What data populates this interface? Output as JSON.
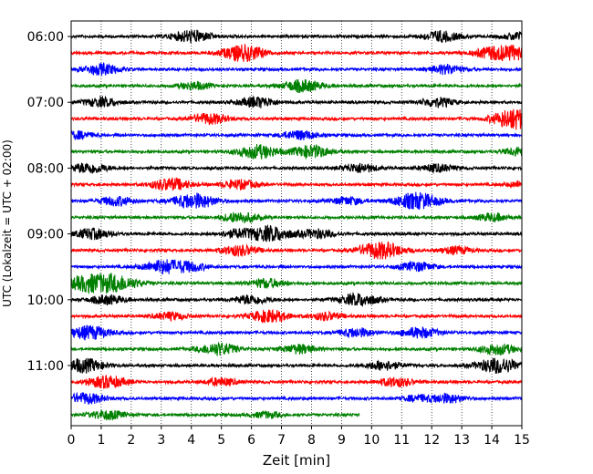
{
  "chart_data": {
    "type": "line",
    "title": "",
    "xlabel": "Zeit  [min]",
    "ylabel": "UTC (Lokalzeit = UTC + 02:00)",
    "xlim": [
      0,
      15
    ],
    "x_ticks": [
      0,
      1,
      2,
      3,
      4,
      5,
      6,
      7,
      8,
      9,
      10,
      11,
      12,
      13,
      14,
      15
    ],
    "y_tick_labels": [
      "06:00",
      "07:00",
      "08:00",
      "09:00",
      "10:00",
      "11:00"
    ],
    "grid": "vertical dotted",
    "row_interval_min": 15,
    "start_time": "06:00",
    "row_colors": [
      "#000000",
      "#ff0000",
      "#0000ff",
      "#008000"
    ],
    "series": [
      {
        "start": "06:00",
        "end_min": 15,
        "events": [
          [
            4.0,
            0.8
          ],
          [
            12.3,
            0.7
          ],
          [
            15.0,
            0.6
          ]
        ]
      },
      {
        "start": "06:15",
        "end_min": 15,
        "events": [
          [
            5.5,
            0.7
          ],
          [
            6.0,
            0.6
          ],
          [
            14.0,
            0.7
          ],
          [
            14.8,
            0.8
          ]
        ]
      },
      {
        "start": "06:30",
        "end_min": 15,
        "events": [
          [
            1.0,
            0.7
          ],
          [
            12.5,
            0.6
          ]
        ]
      },
      {
        "start": "06:45",
        "end_min": 15,
        "events": [
          [
            4.1,
            0.5
          ],
          [
            7.7,
            0.8
          ]
        ]
      },
      {
        "start": "07:00",
        "end_min": 15,
        "events": [
          [
            1.0,
            0.6
          ],
          [
            6.2,
            0.7
          ],
          [
            12.2,
            0.6
          ]
        ]
      },
      {
        "start": "07:15",
        "end_min": 15,
        "events": [
          [
            4.6,
            0.7
          ],
          [
            14.5,
            0.7
          ],
          [
            15.0,
            0.9
          ]
        ]
      },
      {
        "start": "07:30",
        "end_min": 15,
        "events": [
          [
            0.2,
            0.5
          ],
          [
            7.6,
            0.6
          ]
        ]
      },
      {
        "start": "07:45",
        "end_min": 15,
        "events": [
          [
            6.2,
            0.9
          ],
          [
            8.0,
            0.8
          ],
          [
            15.0,
            0.6
          ]
        ]
      },
      {
        "start": "08:00",
        "end_min": 15,
        "events": [
          [
            0.6,
            0.7
          ],
          [
            9.6,
            0.6
          ],
          [
            12.2,
            0.5
          ]
        ]
      },
      {
        "start": "08:15",
        "end_min": 15,
        "events": [
          [
            3.3,
            0.8
          ],
          [
            5.6,
            0.6
          ],
          [
            15.0,
            0.4
          ]
        ]
      },
      {
        "start": "08:30",
        "end_min": 15,
        "events": [
          [
            1.5,
            0.6
          ],
          [
            4.1,
            1.0
          ],
          [
            9.2,
            0.5
          ],
          [
            11.5,
            1.1
          ]
        ]
      },
      {
        "start": "08:45",
        "end_min": 15,
        "events": [
          [
            5.6,
            0.7
          ],
          [
            14.0,
            0.5
          ]
        ]
      },
      {
        "start": "09:00",
        "end_min": 15,
        "events": [
          [
            0.7,
            0.7
          ],
          [
            5.5,
            0.5
          ],
          [
            6.6,
            1.0
          ],
          [
            8.2,
            0.6
          ]
        ]
      },
      {
        "start": "09:15",
        "end_min": 15,
        "events": [
          [
            5.6,
            0.7
          ],
          [
            10.3,
            1.1
          ],
          [
            12.8,
            0.5
          ]
        ]
      },
      {
        "start": "09:30",
        "end_min": 15,
        "events": [
          [
            3.1,
            0.9
          ],
          [
            4.0,
            0.5
          ],
          [
            11.5,
            0.6
          ]
        ]
      },
      {
        "start": "09:45",
        "end_min": 15,
        "events": [
          [
            0.6,
            1.1
          ],
          [
            1.6,
            0.9
          ],
          [
            6.5,
            0.6
          ]
        ]
      },
      {
        "start": "10:00",
        "end_min": 15,
        "events": [
          [
            1.2,
            0.6
          ],
          [
            6.0,
            0.6
          ],
          [
            9.6,
            0.8
          ]
        ]
      },
      {
        "start": "10:15",
        "end_min": 15,
        "events": [
          [
            3.3,
            0.5
          ],
          [
            6.6,
            0.8
          ],
          [
            8.5,
            0.5
          ]
        ]
      },
      {
        "start": "10:30",
        "end_min": 15,
        "events": [
          [
            0.6,
            0.9
          ],
          [
            9.5,
            0.6
          ],
          [
            11.6,
            0.7
          ]
        ]
      },
      {
        "start": "10:45",
        "end_min": 15,
        "events": [
          [
            4.9,
            0.8
          ],
          [
            7.6,
            0.6
          ],
          [
            14.2,
            0.7
          ]
        ]
      },
      {
        "start": "11:00",
        "end_min": 15,
        "events": [
          [
            0.4,
            0.9
          ],
          [
            10.4,
            0.6
          ],
          [
            14.2,
            1.0
          ]
        ]
      },
      {
        "start": "11:15",
        "end_min": 15,
        "events": [
          [
            1.2,
            0.8
          ],
          [
            5.0,
            0.5
          ],
          [
            10.8,
            0.6
          ]
        ]
      },
      {
        "start": "11:30",
        "end_min": 15,
        "events": [
          [
            0.5,
            0.7
          ],
          [
            11.5,
            0.4
          ],
          [
            12.5,
            0.6
          ]
        ]
      },
      {
        "start": "11:45",
        "end_min": 9.6,
        "events": [
          [
            1.2,
            0.6
          ],
          [
            6.5,
            0.4
          ]
        ]
      }
    ]
  }
}
